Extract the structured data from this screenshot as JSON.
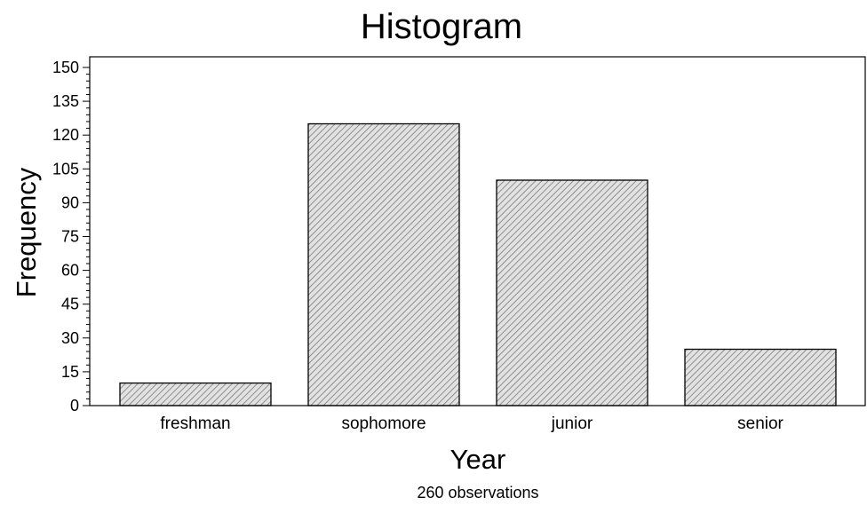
{
  "chart_data": {
    "type": "bar",
    "title": "Histogram",
    "xlabel": "Year",
    "ylabel": "Frequency",
    "footnote": "260 observations",
    "categories": [
      "freshman",
      "sophomore",
      "junior",
      "senior"
    ],
    "values": [
      10,
      125,
      100,
      25
    ],
    "ylim": [
      0,
      150
    ],
    "yticks": [
      0,
      15,
      30,
      45,
      60,
      75,
      90,
      105,
      120,
      135,
      150
    ],
    "minor_tick_step": 3,
    "bar_pattern": "diagonal-hatch",
    "bar_fill": "#d9d9d9",
    "bar_stroke": "#000000",
    "grid": false,
    "legend": "none"
  }
}
